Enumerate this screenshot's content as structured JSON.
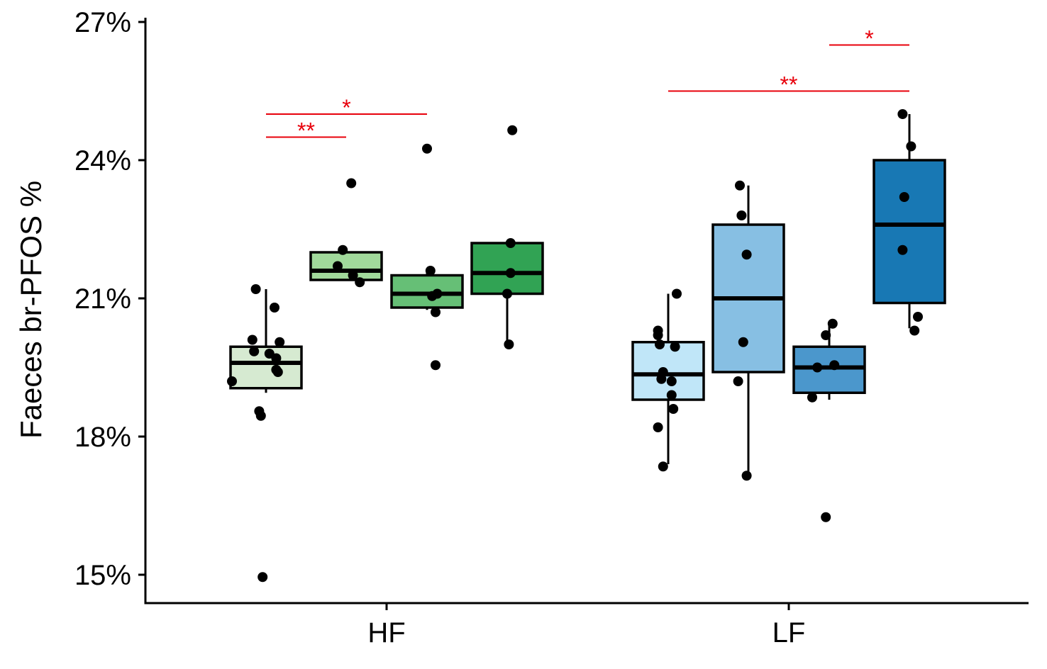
{
  "chart_data": {
    "type": "box",
    "title": "",
    "xlabel": "",
    "ylabel": "Faeces br-PFOS %",
    "ylim": [
      14.4,
      27.4
    ],
    "y_ticks": [
      15,
      18,
      21,
      24,
      27
    ],
    "y_tick_labels": [
      "15%",
      "18%",
      "21%",
      "24%",
      "27%"
    ],
    "categories": [
      "HF",
      "LF"
    ],
    "groups": [
      {
        "category": "HF",
        "boxes": [
          {
            "color": "#d6ead1",
            "q1": 19.05,
            "median": 19.6,
            "q3": 19.95,
            "whisker_low": 18.95,
            "whisker_high": 21.2,
            "points": [
              [
                -0.06,
                21.2
              ],
              [
                -0.08,
                20.1
              ],
              [
                -0.07,
                19.85
              ],
              [
                -0.04,
                18.55
              ],
              [
                -0.03,
                18.45
              ],
              [
                -0.02,
                14.95
              ],
              [
                0.02,
                19.8
              ],
              [
                0.05,
                20.8
              ],
              [
                0.06,
                19.7
              ],
              [
                0.06,
                19.45
              ],
              [
                0.07,
                19.4
              ],
              [
                0.08,
                20.05
              ],
              [
                -0.2,
                19.2
              ]
            ]
          },
          {
            "color": "#a1d99b",
            "q1": 21.4,
            "median": 21.6,
            "q3": 22.0,
            "whisker_low": 21.4,
            "whisker_high": 22.05,
            "points": [
              [
                -0.05,
                21.7
              ],
              [
                -0.02,
                22.05
              ],
              [
                0.03,
                23.5
              ],
              [
                0.04,
                21.5
              ],
              [
                0.08,
                21.35
              ]
            ]
          },
          {
            "color": "#66bf76",
            "q1": 20.8,
            "median": 21.1,
            "q3": 21.5,
            "whisker_low": 20.75,
            "whisker_high": 21.6,
            "points": [
              [
                0.0,
                24.25
              ],
              [
                0.02,
                21.6
              ],
              [
                0.03,
                21.05
              ],
              [
                0.05,
                20.7
              ],
              [
                0.05,
                19.55
              ],
              [
                0.06,
                21.1
              ]
            ]
          },
          {
            "color": "#31a354",
            "q1": 21.1,
            "median": 21.55,
            "q3": 22.2,
            "whisker_low": 20.0,
            "whisker_high": 22.2,
            "points": [
              [
                0.02,
                22.2
              ],
              [
                0.03,
                24.65
              ],
              [
                0.0,
                21.1
              ],
              [
                0.02,
                21.55
              ],
              [
                0.01,
                20.0
              ]
            ]
          }
        ]
      },
      {
        "category": "LF",
        "boxes": [
          {
            "color": "#c0e6f8",
            "q1": 18.8,
            "median": 19.35,
            "q3": 20.05,
            "whisker_low": 17.4,
            "whisker_high": 21.1,
            "points": [
              [
                -0.06,
                20.3
              ],
              [
                -0.06,
                20.2
              ],
              [
                -0.05,
                20.0
              ],
              [
                -0.06,
                18.2
              ],
              [
                -0.03,
                17.35
              ],
              [
                -0.04,
                19.25
              ],
              [
                -0.03,
                19.4
              ],
              [
                0.02,
                19.2
              ],
              [
                0.02,
                18.9
              ],
              [
                0.03,
                18.6
              ],
              [
                0.04,
                19.95
              ],
              [
                0.05,
                21.1
              ]
            ]
          },
          {
            "color": "#87bfe3",
            "q1": 19.4,
            "median": 21.0,
            "q3": 22.6,
            "whisker_low": 17.1,
            "whisker_high": 23.45,
            "points": [
              [
                -0.05,
                23.45
              ],
              [
                -0.04,
                22.8
              ],
              [
                -0.01,
                21.95
              ],
              [
                -0.03,
                20.05
              ],
              [
                -0.06,
                19.2
              ],
              [
                -0.01,
                17.15
              ]
            ]
          },
          {
            "color": "#4b97cc",
            "q1": 18.95,
            "median": 19.5,
            "q3": 19.95,
            "whisker_low": 18.8,
            "whisker_high": 20.4,
            "points": [
              [
                -0.1,
                18.85
              ],
              [
                -0.07,
                19.5
              ],
              [
                -0.02,
                20.2
              ],
              [
                -0.02,
                16.25
              ],
              [
                0.02,
                20.45
              ],
              [
                0.03,
                19.55
              ]
            ]
          },
          {
            "color": "#1878b4",
            "q1": 20.9,
            "median": 22.6,
            "q3": 24.0,
            "whisker_low": 20.35,
            "whisker_high": 25.0,
            "points": [
              [
                -0.04,
                25.0
              ],
              [
                -0.04,
                22.05
              ],
              [
                -0.03,
                23.2
              ],
              [
                0.01,
                24.3
              ],
              [
                0.03,
                20.3
              ],
              [
                0.05,
                20.6
              ]
            ]
          }
        ]
      }
    ],
    "significance": [
      {
        "category": "HF",
        "from_box": 1,
        "to_box": 2,
        "y": 24.5,
        "label": "**"
      },
      {
        "category": "HF",
        "from_box": 1,
        "to_box": 3,
        "y": 25.0,
        "label": "*"
      },
      {
        "category": "LF",
        "from_box": 1,
        "to_box": 4,
        "y": 25.5,
        "label": "**"
      },
      {
        "category": "LF",
        "from_box": 3,
        "to_box": 4,
        "y": 26.5,
        "label": "*"
      }
    ],
    "significance_color": "#e8000b",
    "grid": false,
    "legend": "none"
  }
}
